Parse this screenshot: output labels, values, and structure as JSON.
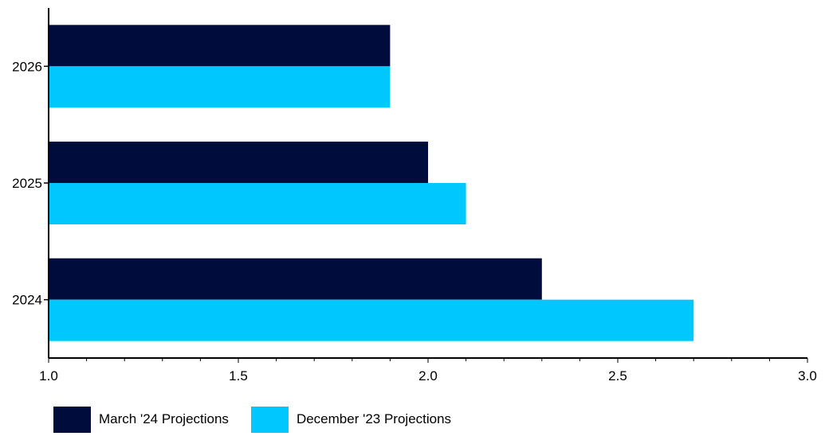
{
  "chart_data": {
    "type": "bar",
    "orientation": "horizontal",
    "categories": [
      "2026",
      "2025",
      "2024"
    ],
    "series": [
      {
        "name": "March '24 Projections",
        "values": [
          1.9,
          2.0,
          2.3
        ],
        "color": "#000d3c"
      },
      {
        "name": "December '23 Projections",
        "values": [
          1.9,
          2.1,
          2.7
        ],
        "color": "#00c8ff"
      }
    ],
    "xlim": [
      1.0,
      3.0
    ],
    "xticks": [
      "1.0",
      "1.5",
      "2.0",
      "2.5",
      "3.0"
    ],
    "xtick_values": [
      1.0,
      1.5,
      2.0,
      2.5,
      3.0
    ],
    "grid": false,
    "legend_position": "bottom-left",
    "title": "",
    "xlabel": "",
    "ylabel": ""
  }
}
